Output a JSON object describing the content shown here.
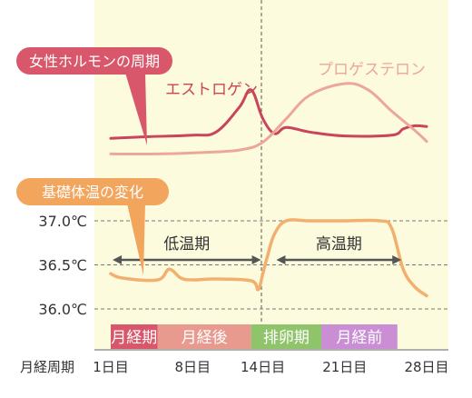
{
  "chart_data": [
    {
      "type": "line",
      "title": "女性ホルモンの周期",
      "xlabel": "月経周期",
      "series": [
        {
          "name": "エストロゲン",
          "color": "#c8455c",
          "x": [
            1,
            4,
            8,
            10,
            12,
            13,
            14,
            15,
            16,
            18,
            21,
            25,
            26,
            27,
            28
          ],
          "y": [
            0.3,
            0.32,
            0.34,
            0.38,
            0.7,
            0.92,
            0.55,
            0.36,
            0.44,
            0.38,
            0.33,
            0.34,
            0.42,
            0.46,
            0.45
          ]
        },
        {
          "name": "プロゲステロン",
          "color": "#eda79a",
          "x": [
            1,
            5,
            9,
            12,
            14,
            16,
            18,
            21,
            23,
            25,
            27,
            28
          ],
          "y": [
            0.1,
            0.1,
            0.12,
            0.15,
            0.25,
            0.55,
            0.85,
            1.0,
            0.92,
            0.65,
            0.4,
            0.26
          ]
        }
      ]
    },
    {
      "type": "line",
      "title": "基礎体温の変化",
      "xlabel": "月経周期",
      "ylim": [
        36.0,
        37.0
      ],
      "yticks": [
        "37.0℃",
        "36.5℃",
        "36.0℃"
      ],
      "series": [
        {
          "name": "基礎体温",
          "color": "#f2b070",
          "x": [
            1,
            2,
            5,
            6,
            7,
            8,
            10,
            13,
            13.6,
            14,
            14.4,
            15,
            16,
            18,
            21,
            24,
            25,
            26,
            27,
            28
          ],
          "y": [
            36.4,
            36.35,
            36.33,
            36.45,
            36.35,
            36.33,
            36.34,
            36.32,
            36.22,
            36.4,
            36.6,
            36.85,
            37.0,
            37.0,
            37.0,
            37.0,
            36.92,
            36.45,
            36.25,
            36.15
          ]
        }
      ],
      "annotations": [
        {
          "label": "低温期",
          "from": 1,
          "to": 14
        },
        {
          "label": "高温期",
          "from": 15,
          "to": 26
        }
      ]
    }
  ],
  "x_ticks": [
    "1日目",
    "8日目",
    "14日目",
    "21日目",
    "28日目"
  ],
  "x_axis_title": "月経周期",
  "callouts": {
    "hormone": "女性ホルモンの周期",
    "temperature": "基礎体温の変化"
  },
  "phases": [
    {
      "label": "月経期",
      "from": 1,
      "to": 5,
      "color": "#d9576a"
    },
    {
      "label": "月経後",
      "from": 5,
      "to": 13,
      "color": "#e89a8e"
    },
    {
      "label": "排卵期",
      "from": 13,
      "to": 19,
      "color": "#8fc46a"
    },
    {
      "label": "月経前",
      "from": 19,
      "to": 25.5,
      "color": "#c98ed4"
    }
  ],
  "colors": {
    "panel_background": "#fdfbdd",
    "axis": "#666666",
    "hormone_callout": "#d9576a",
    "temperature_callout": "#f2a55c",
    "arrow": "#555555"
  }
}
